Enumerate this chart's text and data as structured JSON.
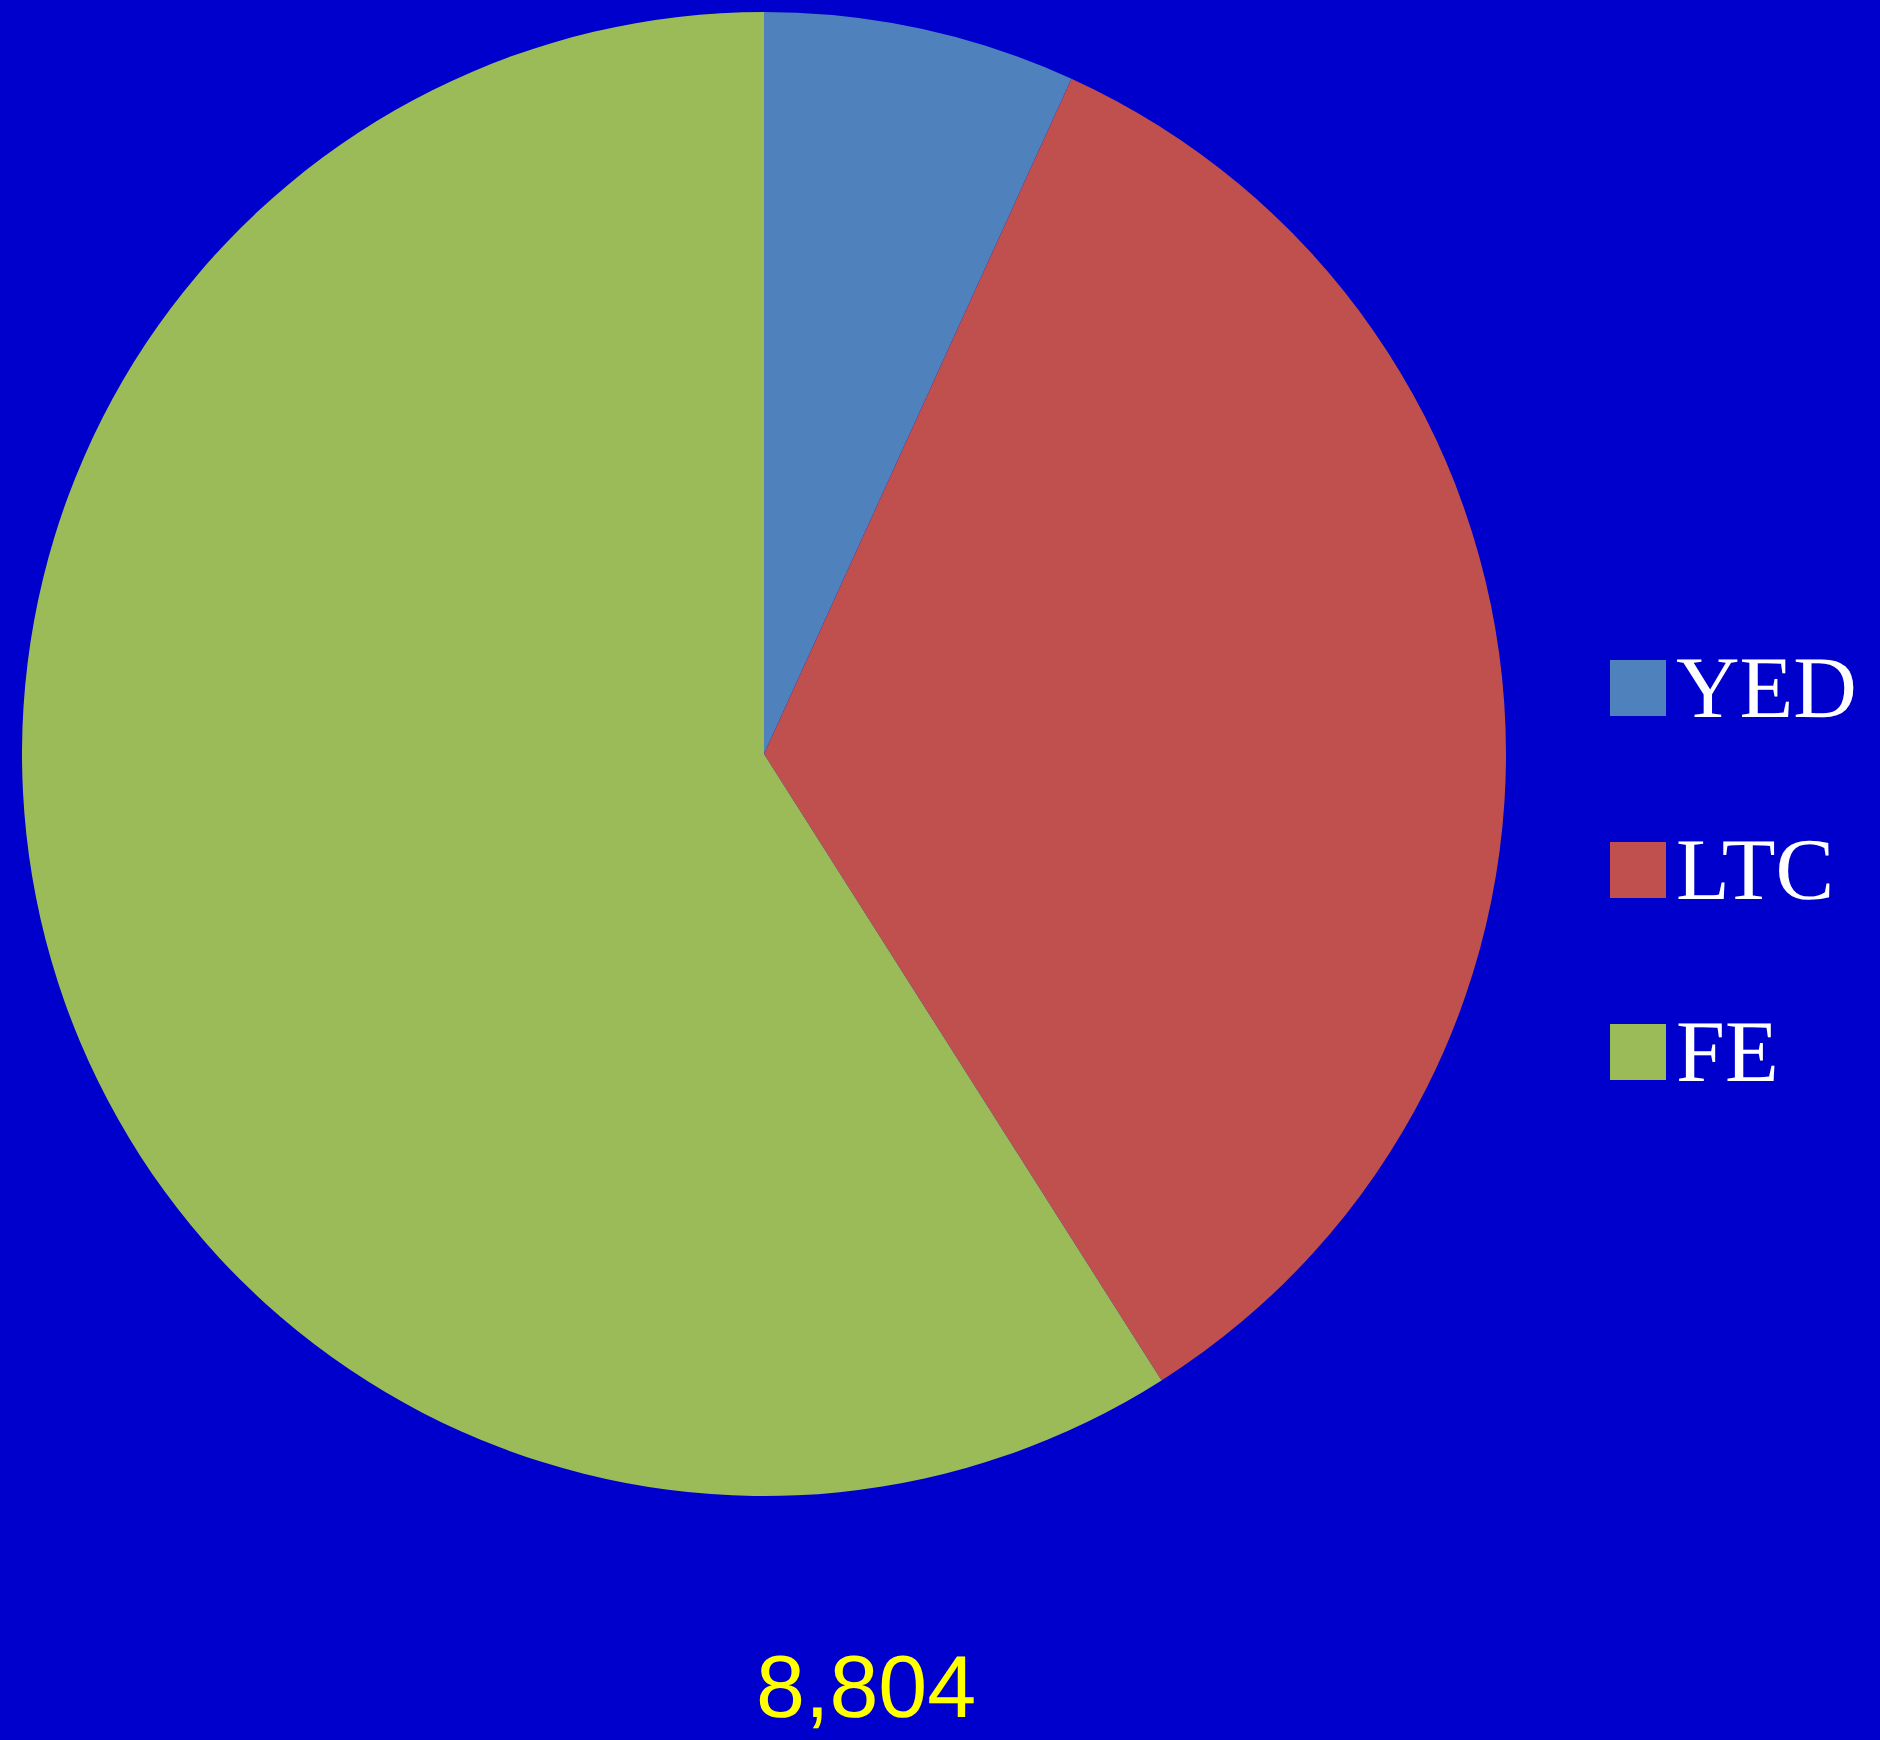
{
  "chart_data": {
    "type": "pie",
    "categories": [
      "YED",
      "LTC",
      "FE"
    ],
    "values": [
      6.8,
      34.2,
      59.0
    ],
    "colors": [
      "#4f81bd",
      "#c0504d",
      "#9bbb59"
    ],
    "legend": "right",
    "annotations": [
      "8,804"
    ]
  }
}
